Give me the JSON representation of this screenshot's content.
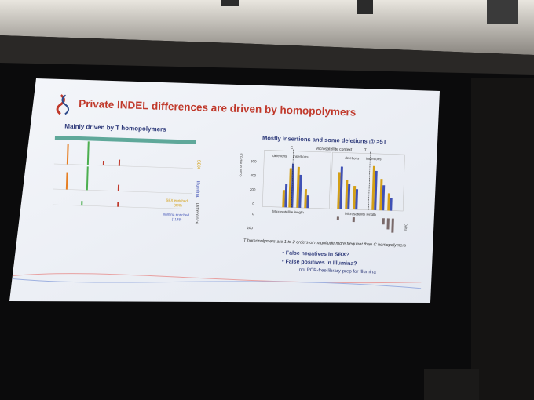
{
  "slide": {
    "title": "Private INDEL differences are driven by homopolymers",
    "left_panel": {
      "subtitle": "Mainly driven by T homopolymers",
      "row_labels": [
        "SBX",
        "Illumina",
        "Difference"
      ],
      "enriched": [
        "SBX enriched",
        "(390)",
        "Illumina enriched",
        "(1188)"
      ]
    },
    "right_panel": {
      "subtitle": "Mostly insertions and some deletions @ >5T",
      "context_label": "Microsatellite context",
      "bases": [
        "C",
        "T"
      ],
      "split_labels": [
        "deletions",
        "insertions"
      ],
      "y_label": "Count of INDELs",
      "y_ticks": [
        "600",
        "400",
        "200",
        "0"
      ],
      "delta_ticks": [
        "0",
        "200"
      ],
      "x_label": "Microsatellite length",
      "delta_label": "Delta"
    },
    "footnote": "T homopolymers are 1 to 2 orders of magnitude more frequent than C homopolymers",
    "bullets": [
      "False negatives in SBX?",
      "False positives in Illumina?"
    ],
    "note": "not PCR-free library-prep for Illumina"
  }
}
